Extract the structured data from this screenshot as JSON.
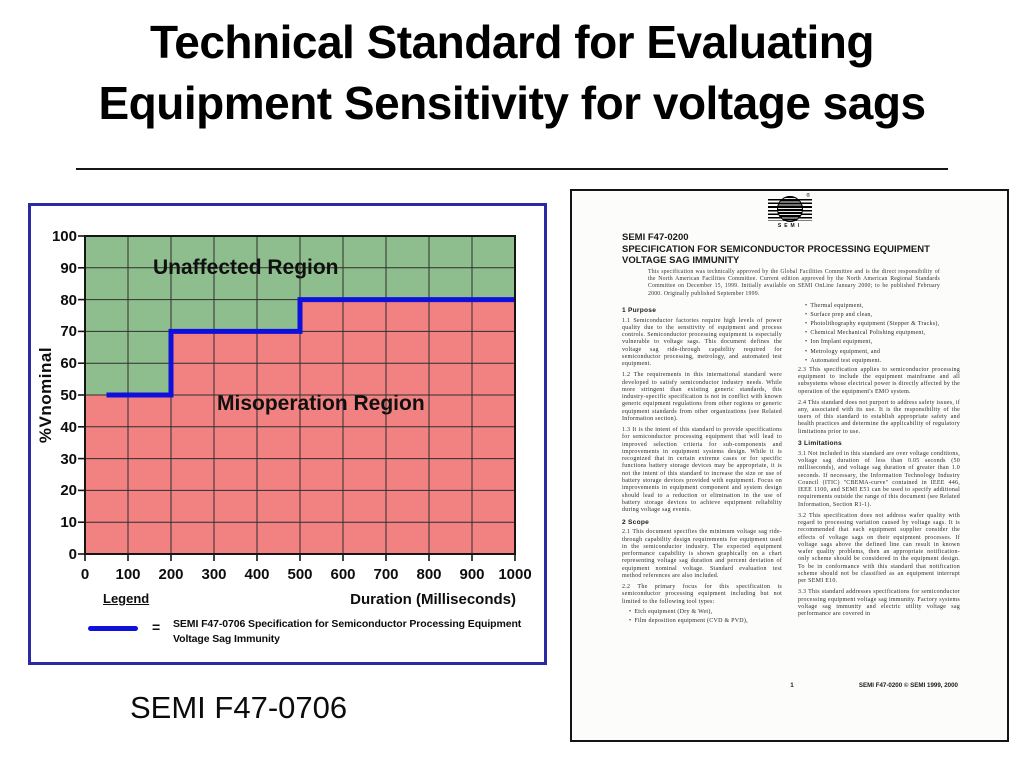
{
  "slide": {
    "title_lines": [
      "Technical Standard for Evaluating",
      "Equipment Sensitivity for voltage sags"
    ],
    "caption": "SEMI F47-0706"
  },
  "chart": {
    "legend_heading": "Legend",
    "legend_equals": "="
  },
  "chart_data": {
    "type": "area",
    "title": "",
    "xlabel": "Duration (Milliseconds)",
    "ylabel": "%Vnominal",
    "xlim": [
      0,
      1000
    ],
    "ylim": [
      0,
      100
    ],
    "x_ticks": [
      0,
      100,
      200,
      300,
      400,
      500,
      600,
      700,
      800,
      900,
      1000
    ],
    "y_ticks": [
      0,
      10,
      20,
      30,
      40,
      50,
      60,
      70,
      80,
      90,
      100
    ],
    "grid": true,
    "legend_position": "bottom",
    "regions": [
      {
        "name": "Unaffected Region",
        "color": "#8ebe8e",
        "position": "above curve"
      },
      {
        "name": "Misoperation Region",
        "color": "#f28181",
        "position": "below curve"
      }
    ],
    "series": [
      {
        "name": "SEMI F47-0706  Specification for Semiconductor Processing Equipment Voltage Sag Immunity",
        "color": "#1010dd",
        "points": [
          [
            50,
            50
          ],
          [
            200,
            50
          ],
          [
            200,
            70
          ],
          [
            500,
            70
          ],
          [
            500,
            80
          ],
          [
            1000,
            80
          ]
        ]
      }
    ]
  },
  "document": {
    "logo_text": "SEMI",
    "logo_reg": "®",
    "doc_number": "SEMI F47-0200",
    "title_lines": [
      "SPECIFICATION FOR SEMICONDUCTOR PROCESSING EQUIPMENT",
      "VOLTAGE SAG IMMUNITY"
    ],
    "abstract": "This specification was technically approved by the Global Facilities Committee and is the direct responsibility of the North American Facilities Committee. Current edition approved by the North American Regional Standards Committee on December 15, 1999.  Initially available on SEMI OnLine January 2000; to be published February 2000. Originally published September 1999.",
    "columns": {
      "left": [
        {
          "type": "heading",
          "text": "1  Purpose"
        },
        {
          "type": "para",
          "text": "1.1  Semiconductor factories require high levels of power quality due to the sensitivity of equipment and process controls.  Semiconductor processing equipment is especially vulnerable to voltage sags.  This document defines the voltage sag ride-through capability required for semiconductor processing, metrology, and automated test equipment."
        },
        {
          "type": "para",
          "text": "1.2  The requirements in this international standard were developed to satisfy semiconductor industry needs.  While more stringent than existing generic standards, this industry-specific specification is not in conflict with known generic equipment regulations from other regions or generic equipment standards from other organizations (see Related Information section)."
        },
        {
          "type": "para",
          "text": "1.3  It is the intent of this standard to provide specifications for semiconductor processing equipment that will lead to improved selection criteria for sub-components and improvements in equipment systems design.  While it is recognized that in certain extreme cases or for specific functions battery storage devices may be appropriate, it is not the intent of this standard to increase the size or use of battery storage devices provided with equipment.  Focus on improvements in equipment component and system design should lead to a reduction or elimination in the use of battery storage devices to achieve equipment reliability during voltage sag events."
        },
        {
          "type": "heading",
          "text": "2  Scope"
        },
        {
          "type": "para",
          "text": "2.1  This document specifies the minimum voltage sag ride-through capability design requirements for equipment used in the semiconductor industry.  The expected equipment performance capability is shown graphically on a chart representing voltage sag duration and percent deviation of equipment nominal voltage.  Standard evaluation test method references are also included."
        },
        {
          "type": "para",
          "text": "2.2  The primary focus for this specification is semiconductor processing equipment including but not limited to the following tool types:"
        },
        {
          "type": "bullet",
          "text": "Etch equipment (Dry & Wet),"
        },
        {
          "type": "bullet",
          "text": "Film deposition equipment (CVD & PVD),"
        }
      ],
      "right": [
        {
          "type": "bullet",
          "text": "Thermal equipment,"
        },
        {
          "type": "bullet",
          "text": "Surface prep and clean,"
        },
        {
          "type": "bullet",
          "text": "Photolithography equipment (Stepper & Tracks),"
        },
        {
          "type": "bullet",
          "text": "Chemical Mechanical Polishing equipment,"
        },
        {
          "type": "bullet",
          "text": "Ion Implant equipment,"
        },
        {
          "type": "bullet",
          "text": "Metrology equipment, and"
        },
        {
          "type": "bullet",
          "text": "Automated test equipment."
        },
        {
          "type": "para",
          "text": "2.3  This specification applies to semiconductor processing equipment to include the equipment mainframe and all subsystems whose electrical power is directly affected by the operation of the equipment's EMO system."
        },
        {
          "type": "para",
          "text": "2.4  This standard does not purport to address safety issues, if any, associated with its use.  It is the responsibility of the users of this standard to establish appropriate safety and health practices and determine the applicability of regulatory limitations prior to use."
        },
        {
          "type": "heading",
          "text": "3  Limitations"
        },
        {
          "type": "para",
          "text": "3.1  Not included in this standard are over voltage conditions, voltage sag duration of less than 0.05 seconds (50 milliseconds), and voltage sag duration of greater than 1.0 seconds.  If necessary, the Information Technology Industry Council (ITIC) \"CBEMA-curve\" contained in IEEE 446, IEEE 1100, and SEMI E51 can be used to specify additional requirements outside the range of this document (see Related Information, Section R1-1)."
        },
        {
          "type": "para",
          "text": "3.2  This specification does not address wafer quality with regard to processing variation caused by voltage sags.  It is recommended that each equipment supplier consider the effects of voltage sags on their equipment processes.  If voltage sags above the defined line can result in known wafer quality problems, then an appropriate notification-only scheme should be considered in the equipment design.  To be in conformance with this standard that notification scheme should not be classified as an equipment interrupt per SEMI E10."
        },
        {
          "type": "para",
          "text": "3.3  This standard addresses specifications for semiconductor processing equipment voltage sag immunity.  Factory systems voltage sag immunity and electric utility voltage sag performance are covered in"
        }
      ]
    },
    "footer": {
      "page": "1",
      "copyright": "SEMI F47-0200 © SEMI 1999, 2000"
    }
  }
}
